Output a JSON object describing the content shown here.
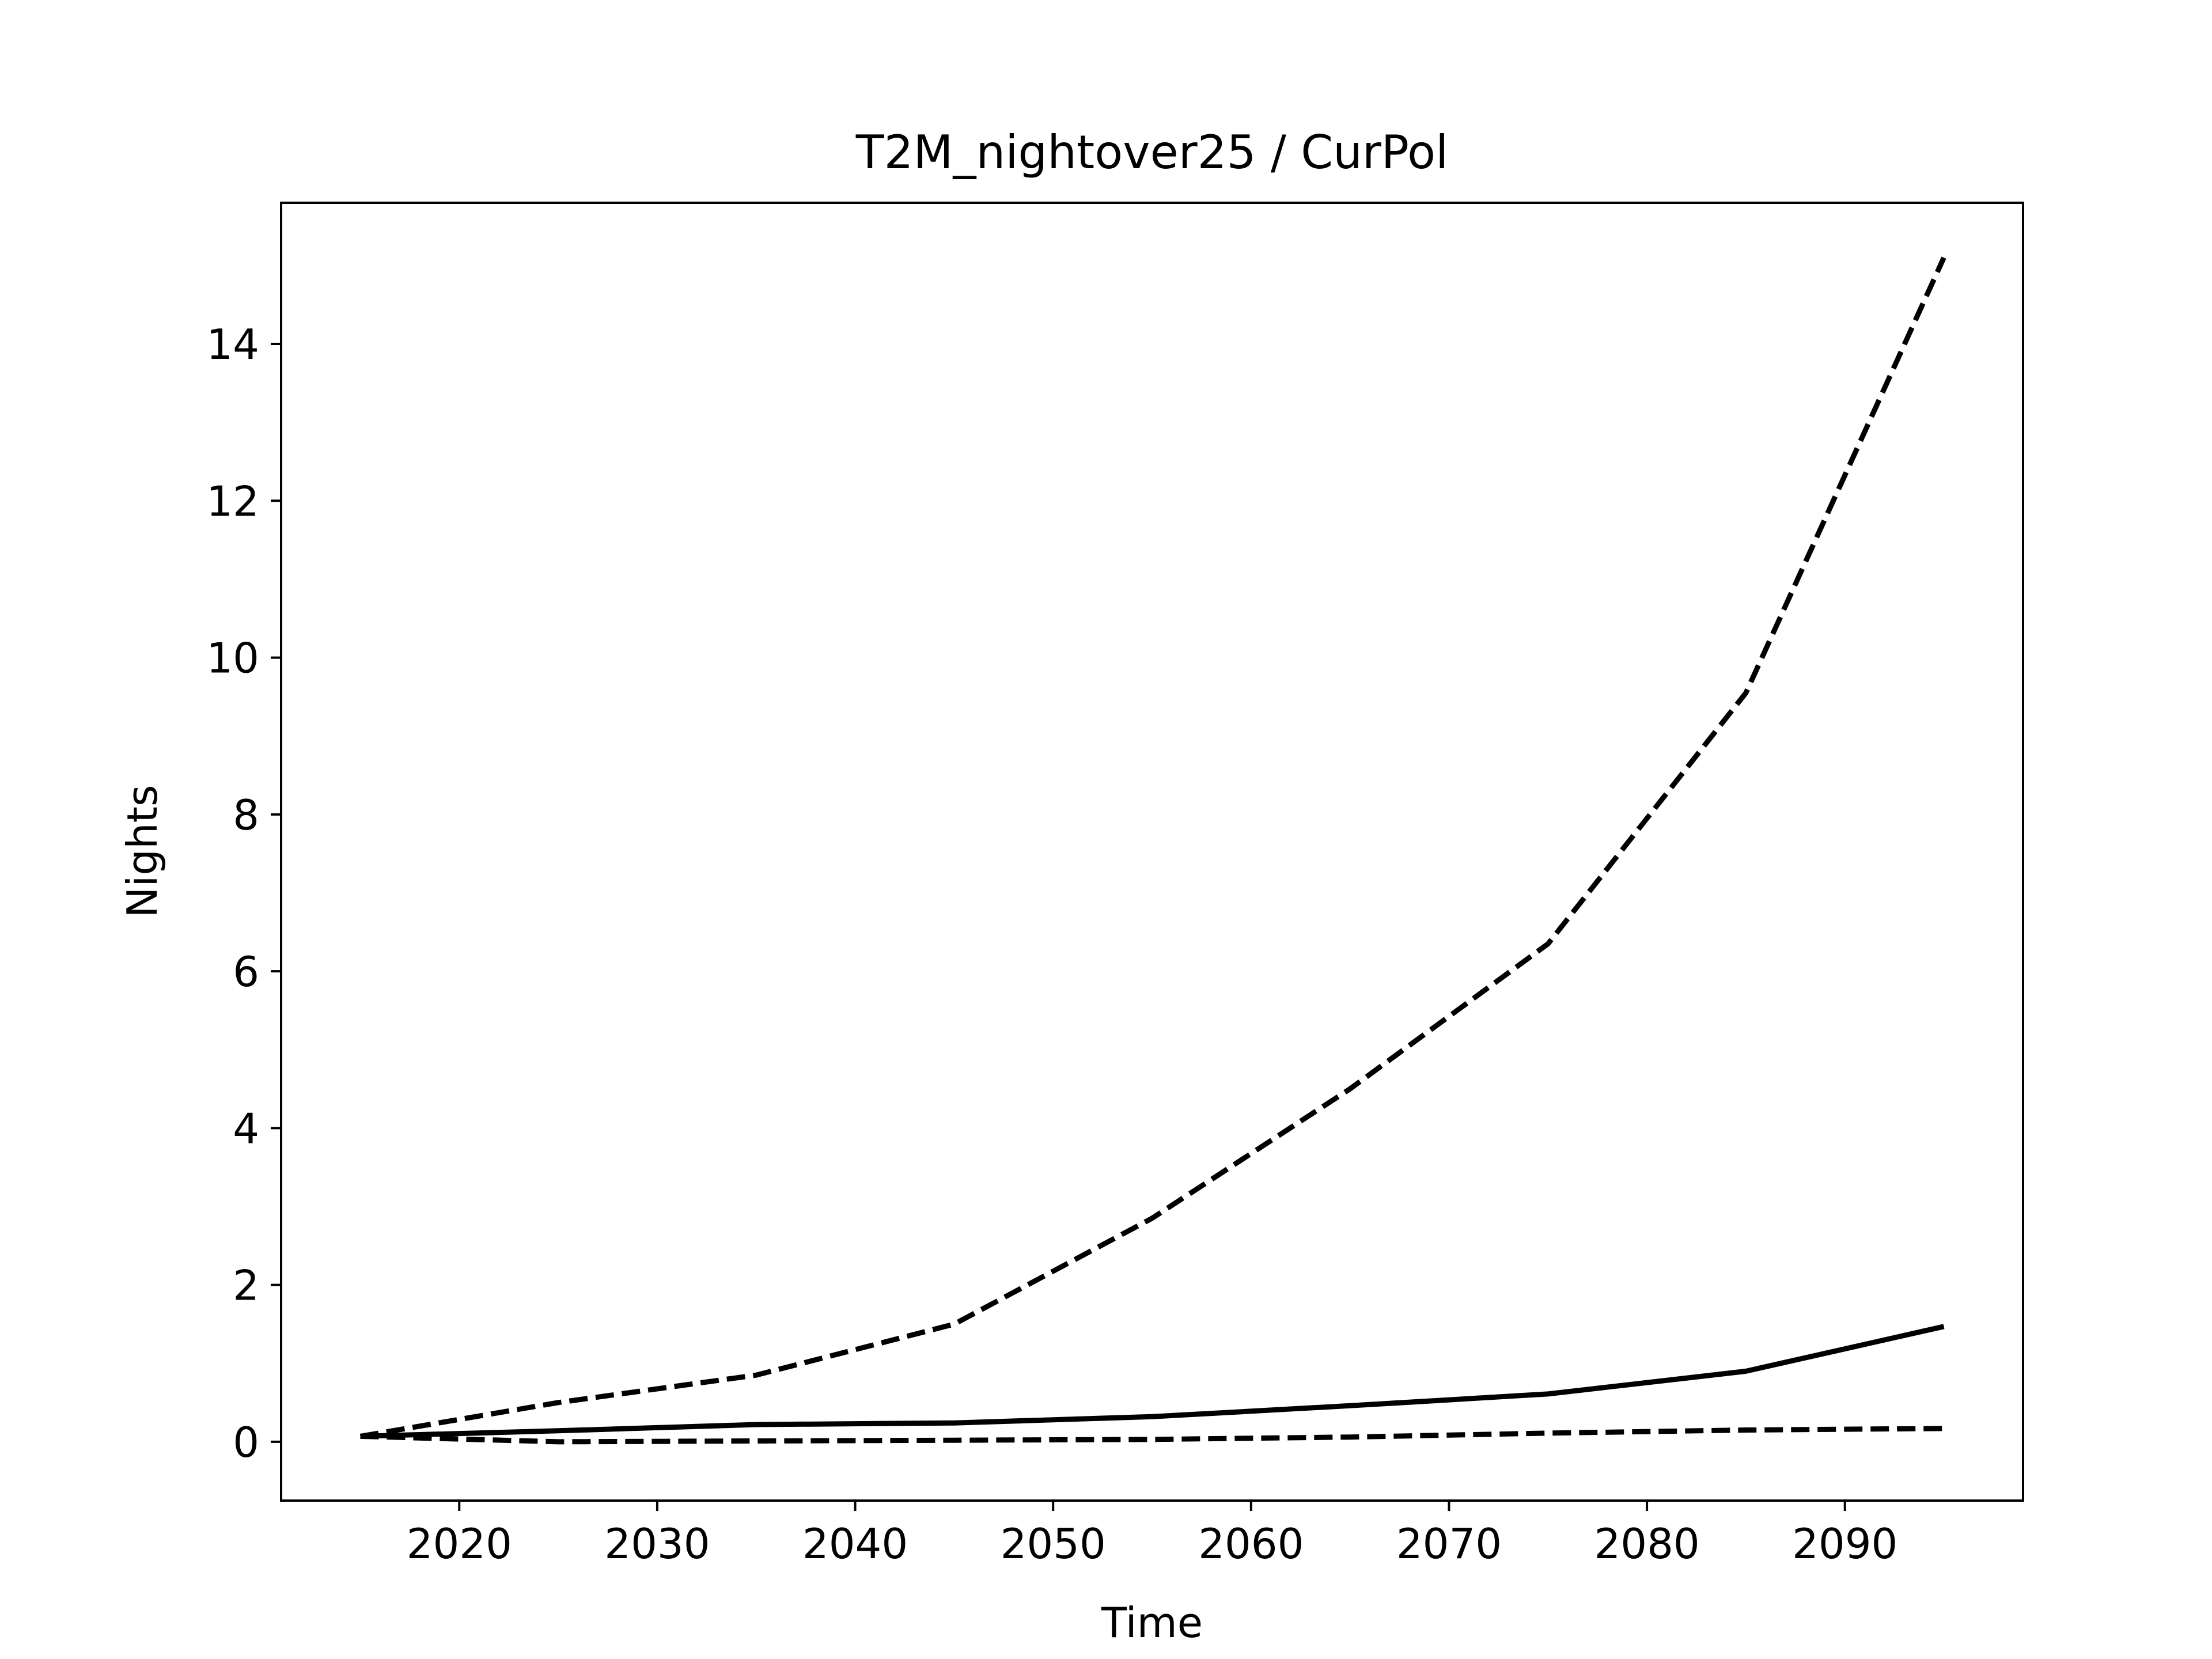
{
  "chart_data": {
    "type": "line",
    "title": "T2M_nightover25 / CurPol",
    "xlabel": "Time",
    "ylabel": "Nights",
    "xlim": [
      2011,
      2099
    ],
    "ylim": [
      -0.75,
      15.8
    ],
    "xticks": [
      2020,
      2030,
      2040,
      2050,
      2060,
      2070,
      2080,
      2090
    ],
    "yticks": [
      0,
      2,
      4,
      6,
      8,
      10,
      12,
      14
    ],
    "grid": false,
    "x": [
      2015,
      2025,
      2035,
      2045,
      2055,
      2065,
      2075,
      2085,
      2095
    ],
    "series": [
      {
        "style": "dashed",
        "color": "#000000",
        "values": [
          0.07,
          0.5,
          0.85,
          1.5,
          2.85,
          4.5,
          6.35,
          9.55,
          15.1
        ]
      },
      {
        "style": "solid",
        "color": "#000000",
        "values": [
          0.07,
          0.14,
          0.22,
          0.24,
          0.32,
          0.46,
          0.61,
          0.9,
          1.47
        ]
      },
      {
        "style": "dashed",
        "color": "#000000",
        "values": [
          0.07,
          0.0,
          0.01,
          0.02,
          0.03,
          0.06,
          0.11,
          0.15,
          0.17
        ]
      }
    ]
  }
}
